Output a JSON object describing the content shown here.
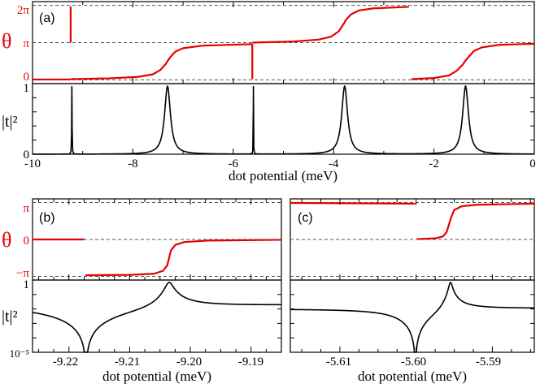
{
  "colors": {
    "phase": "#e60000",
    "transmission": "#000000",
    "reference_lines": "#555555"
  },
  "chart_data": [
    {
      "panel": "(a)",
      "type": "line",
      "xlabel": "dot potential (meV)",
      "xlim": [
        -10,
        0
      ],
      "x_ticks": [
        "-10",
        "-8",
        "-6",
        "-4",
        "-2",
        "0"
      ],
      "top": {
        "ylabel": "θ",
        "ylim": [
          -0.1,
          2.1
        ],
        "y_ticks": [
          "0",
          "π",
          "2π"
        ],
        "reference_lines": [
          "0",
          "π",
          "2π"
        ],
        "series": [
          {
            "values": [
              [
                -10,
                0.01
              ],
              [
                -9.24,
                0.01
              ]
            ]
          },
          {
            "values": [
              [
                -9.24,
                1.97
              ],
              [
                -9.24,
                1.0
              ]
            ]
          },
          {
            "values": [
              [
                -9.24,
                0.02
              ],
              [
                -8.5,
                0.04
              ],
              [
                -7.9,
                0.08
              ],
              [
                -7.6,
                0.15
              ],
              [
                -7.45,
                0.27
              ],
              [
                -7.35,
                0.42
              ],
              [
                -7.3,
                0.52
              ],
              [
                -7.25,
                0.62
              ],
              [
                -7.15,
                0.76
              ],
              [
                -7.0,
                0.85
              ],
              [
                -6.6,
                0.92
              ],
              [
                -5.62,
                0.96
              ]
            ]
          },
          {
            "values": [
              [
                -5.62,
                0.96
              ],
              [
                -5.62,
                0.02
              ]
            ]
          },
          {
            "values": [
              [
                -5.62,
                1.0
              ],
              [
                -4.8,
                1.03
              ],
              [
                -4.3,
                1.08
              ],
              [
                -4.05,
                1.16
              ],
              [
                -3.9,
                1.3
              ],
              [
                -3.8,
                1.5
              ],
              [
                -3.75,
                1.62
              ],
              [
                -3.65,
                1.76
              ],
              [
                -3.5,
                1.86
              ],
              [
                -3.2,
                1.92
              ],
              [
                -2.5,
                1.96
              ]
            ]
          },
          {
            "values": [
              [
                -2.45,
                0.02
              ],
              [
                -2.0,
                0.05
              ],
              [
                -1.7,
                0.12
              ],
              [
                -1.55,
                0.24
              ],
              [
                -1.42,
                0.42
              ],
              [
                -1.37,
                0.52
              ],
              [
                -1.3,
                0.63
              ],
              [
                -1.2,
                0.78
              ],
              [
                -1.05,
                0.87
              ],
              [
                -0.7,
                0.94
              ],
              [
                0,
                0.97
              ]
            ]
          }
        ]
      },
      "bottom": {
        "ylabel": "|t|²",
        "ylim": [
          0,
          1
        ],
        "y_ticks": [
          "0",
          "1"
        ],
        "resonances": [
          {
            "center": -9.216,
            "width": 0.004,
            "peak": 1
          },
          {
            "center": -7.31,
            "width": 0.07,
            "peak": 1
          },
          {
            "center": -5.598,
            "width": 0.003,
            "peak": 1
          },
          {
            "center": -3.78,
            "width": 0.07,
            "peak": 1
          },
          {
            "center": -1.37,
            "width": 0.07,
            "peak": 1
          }
        ]
      }
    },
    {
      "panel": "(b)",
      "type": "line",
      "xlabel": "dot potential (meV)",
      "xlim": [
        -9.226,
        -9.185
      ],
      "x_ticks": [
        "-9.22",
        "-9.21",
        "-9.20",
        "-9.19"
      ],
      "top": {
        "ylabel": "θ",
        "ylim": [
          -1.1,
          1.1
        ],
        "y_ticks": [
          "−π",
          "0",
          "π"
        ],
        "reference_lines": [
          "−π",
          "0",
          "π"
        ],
        "series": [
          {
            "values": [
              [
                -9.226,
                0.0
              ],
              [
                -9.2175,
                0.0
              ]
            ]
          },
          {
            "values": [
              [
                -9.2173,
                -0.97
              ],
              [
                -9.21,
                -0.96
              ],
              [
                -9.206,
                -0.93
              ],
              [
                -9.2045,
                -0.85
              ],
              [
                -9.2038,
                -0.7
              ],
              [
                -9.2035,
                -0.5
              ],
              [
                -9.2032,
                -0.3
              ],
              [
                -9.2025,
                -0.15
              ],
              [
                -9.201,
                -0.07
              ],
              [
                -9.197,
                -0.03
              ],
              [
                -9.185,
                -0.01
              ]
            ]
          }
        ]
      },
      "bottom": {
        "ylabel": "|t|²",
        "yscale": "log",
        "ylim": [
          1e-05,
          1
        ],
        "y_ticks": [
          "10⁻⁵",
          "1"
        ],
        "fano": {
          "resonance": -9.2035,
          "zero": -9.2172,
          "gamma": 0.0006,
          "background": 0.026
        }
      }
    },
    {
      "panel": "(c)",
      "type": "line",
      "xlabel": "dot potential (meV)",
      "xlim": [
        -5.6165,
        -5.5845
      ],
      "x_ticks": [
        "-5.61",
        "-5.60",
        "-5.59"
      ],
      "top": {
        "ylabel": "θ",
        "ylim": [
          -1.1,
          1.1
        ],
        "y_ticks": [
          "π",
          "0",
          "−π"
        ],
        "reference_lines": [
          "π",
          "0",
          "−π"
        ],
        "series": [
          {
            "values": [
              [
                -5.6165,
                0.99
              ],
              [
                -5.6001,
                0.97
              ]
            ]
          },
          {
            "values": [
              [
                -5.5999,
                0.01
              ],
              [
                -5.5975,
                0.03
              ],
              [
                -5.5965,
                0.08
              ],
              [
                -5.596,
                0.2
              ],
              [
                -5.5957,
                0.4
              ],
              [
                -5.5954,
                0.6
              ],
              [
                -5.595,
                0.8
              ],
              [
                -5.594,
                0.9
              ],
              [
                -5.592,
                0.94
              ],
              [
                -5.5845,
                0.97
              ]
            ]
          }
        ]
      },
      "bottom": {
        "ylabel": "|t|²",
        "yscale": "log",
        "ylim": [
          1e-05,
          1
        ],
        "fano": {
          "resonance": -5.5955,
          "zero": -5.6001,
          "gamma": 0.00023,
          "background": 0.012
        }
      }
    }
  ]
}
